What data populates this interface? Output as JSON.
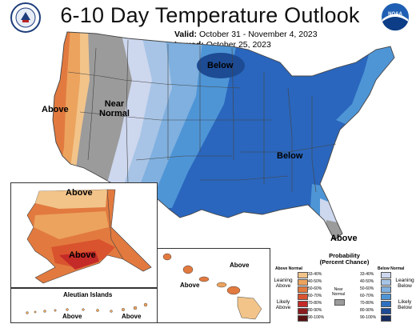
{
  "header": {
    "title": "6-10 Day Temperature Outlook",
    "valid_label": "Valid:",
    "valid_value": "October 31 - November 4, 2023",
    "issued_label": "Issued:",
    "issued_value": "October 25, 2023"
  },
  "logos": {
    "doc": "commerce-seal",
    "noaa": "NOAA"
  },
  "map_labels": {
    "above_west": "Above",
    "near_normal": "Near\nNormal",
    "below_north": "Below",
    "below_east": "Below",
    "above_florida": "Above",
    "alaska_above_n": "Above",
    "alaska_above_s": "Above",
    "aleutian_title": "Aleutian Islands",
    "aleutian_above_1": "Above",
    "aleutian_above_2": "Above",
    "hawaii_above_1": "Above",
    "hawaii_above_2": "Above"
  },
  "legend": {
    "title": "Probability\n(Percent Chance)",
    "above_header": "Above Normal",
    "below_header": "Below Normal",
    "near_label": "Near\nNormal",
    "leaning_above": "Leaning\nAbove",
    "likely_above": "Likely\nAbove",
    "leaning_below": "Leaning\nBelow",
    "likely_below": "Likely\nBelow",
    "above_bins": [
      "33-40%",
      "40-50%",
      "50-60%",
      "60-70%",
      "70-80%",
      "80-90%",
      "90-100%"
    ],
    "below_bins": [
      "33-40%",
      "40-50%",
      "50-60%",
      "60-70%",
      "70-80%",
      "80-90%",
      "90-100%"
    ],
    "above_colors": [
      "#f2c48a",
      "#eca35e",
      "#e27a3f",
      "#d9532e",
      "#c42a27",
      "#8c1d1f",
      "#5a1212"
    ],
    "below_colors": [
      "#cdd7ee",
      "#a7c4e6",
      "#7fb0df",
      "#4e95d6",
      "#2c6fc1",
      "#1d4b94",
      "#152c5e"
    ],
    "near_color": "#9b9b9b"
  }
}
